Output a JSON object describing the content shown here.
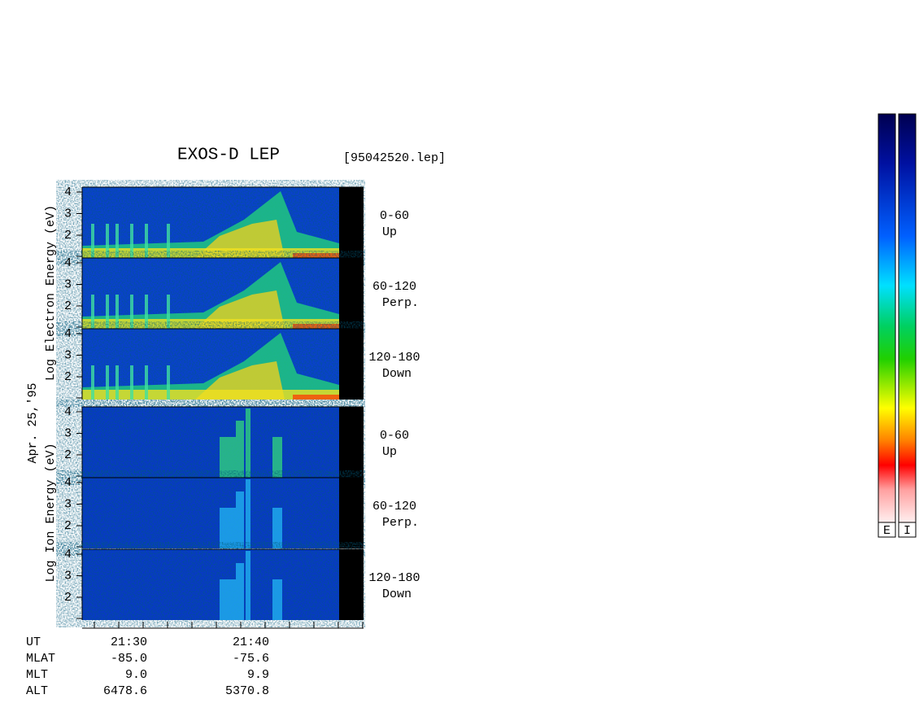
{
  "header": {
    "title": "EXOS-D LEP",
    "file": "[95042520.lep]",
    "date": "Apr. 25,'95"
  },
  "groups": [
    {
      "label": "Log  Electron  Energy (eV)",
      "panels": [
        {
          "range": "0-60",
          "dir": "Up"
        },
        {
          "range": "60-120",
          "dir": "Perp."
        },
        {
          "range": "120-180",
          "dir": "Down"
        }
      ]
    },
    {
      "label": "Log  Ion  Energy (eV)",
      "panels": [
        {
          "range": "0-60",
          "dir": "Up"
        },
        {
          "range": "60-120",
          "dir": "Perp."
        },
        {
          "range": "120-180",
          "dir": "Down"
        }
      ]
    }
  ],
  "energy_ticks": [
    "4",
    "3",
    "2"
  ],
  "orbit": {
    "rows": [
      [
        "UT",
        "21:30",
        "21:40"
      ],
      [
        "MLAT",
        "-85.0",
        "-75.6"
      ],
      [
        "MLT",
        "9.0",
        "9.9"
      ],
      [
        "ALT",
        "6478.6",
        "5370.8"
      ]
    ]
  },
  "colorbars": [
    "E",
    "I"
  ]
}
